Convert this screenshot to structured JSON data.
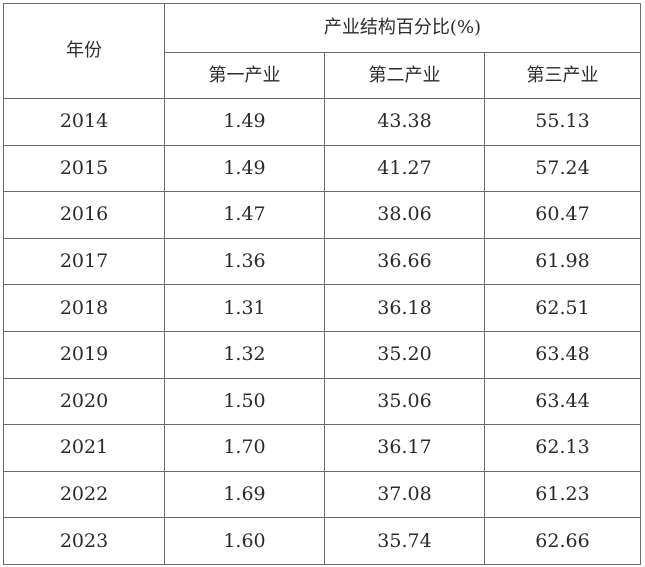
{
  "table": {
    "year_header": "年份",
    "group_header": "产业结构百分比(%)",
    "sub_headers": [
      "第一产业",
      "第二产业",
      "第三产业"
    ],
    "rows": [
      {
        "year": "2014",
        "values": [
          "1.49",
          "43.38",
          "55.13"
        ]
      },
      {
        "year": "2015",
        "values": [
          "1.49",
          "41.27",
          "57.24"
        ]
      },
      {
        "year": "2016",
        "values": [
          "1.47",
          "38.06",
          "60.47"
        ]
      },
      {
        "year": "2017",
        "values": [
          "1.36",
          "36.66",
          "61.98"
        ]
      },
      {
        "year": "2018",
        "values": [
          "1.31",
          "36.18",
          "62.51"
        ]
      },
      {
        "year": "2019",
        "values": [
          "1.32",
          "35.20",
          "63.48"
        ]
      },
      {
        "year": "2020",
        "values": [
          "1.50",
          "35.06",
          "63.44"
        ]
      },
      {
        "year": "2021",
        "values": [
          "1.70",
          "36.17",
          "62.13"
        ]
      },
      {
        "year": "2022",
        "values": [
          "1.69",
          "37.08",
          "61.23"
        ]
      },
      {
        "year": "2023",
        "values": [
          "1.60",
          "35.74",
          "62.66"
        ]
      }
    ]
  }
}
